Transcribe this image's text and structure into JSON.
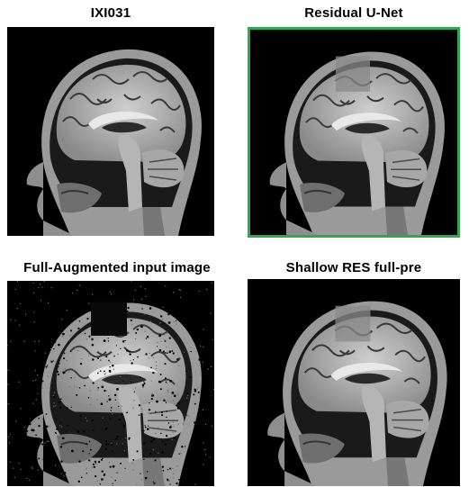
{
  "panels": [
    {
      "id": "tl",
      "title": "IXI031",
      "image": "sagittal-brain-mri"
    },
    {
      "id": "tr",
      "title": "Residual U-Net",
      "image": "sagittal-brain-mri-reconstructed",
      "highlight_color": "#2fa84f"
    },
    {
      "id": "bl",
      "title": "Full-Augmented input image",
      "image": "sagittal-brain-mri-augmented-noisy-masked"
    },
    {
      "id": "br",
      "title": "Shallow RES full-pre",
      "image": "sagittal-brain-mri-reconstructed"
    }
  ]
}
